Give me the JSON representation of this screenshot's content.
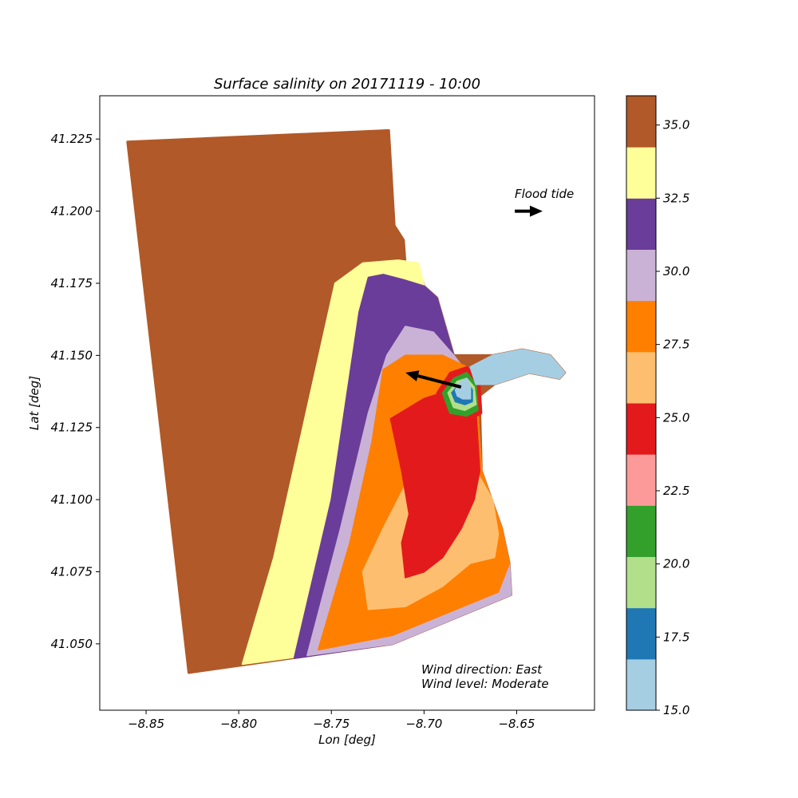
{
  "chart_data": {
    "type": "scatter",
    "title": "Surface salinity on 20171119 - 10:00",
    "xlabel": "Lon [deg]",
    "ylabel": "Lat [deg]",
    "xlim": [
      -8.875,
      -8.608
    ],
    "ylim": [
      41.027,
      41.24
    ],
    "xticks": [
      -8.85,
      -8.8,
      -8.75,
      -8.7,
      -8.65
    ],
    "xtick_labels": [
      "−8.85",
      "−8.80",
      "−8.75",
      "−8.70",
      "−8.65"
    ],
    "yticks": [
      41.05,
      41.075,
      41.1,
      41.125,
      41.15,
      41.175,
      41.2,
      41.225
    ],
    "ytick_labels": [
      "41.050",
      "41.075",
      "41.100",
      "41.125",
      "41.150",
      "41.175",
      "41.200",
      "41.225"
    ],
    "grid": false,
    "domain_outline": [
      [
        -8.86,
        41.224
      ],
      [
        -8.719,
        41.228
      ],
      [
        -8.716,
        41.195
      ],
      [
        -8.711,
        41.19
      ],
      [
        -8.71,
        41.181
      ],
      [
        -8.703,
        41.18
      ],
      [
        -8.7,
        41.174
      ],
      [
        -8.693,
        41.17
      ],
      [
        -8.684,
        41.15
      ],
      [
        -8.675,
        41.15
      ],
      [
        -8.663,
        41.15
      ],
      [
        -8.647,
        41.152
      ],
      [
        -8.632,
        41.15
      ],
      [
        -8.624,
        41.144
      ],
      [
        -8.627,
        41.142
      ],
      [
        -8.643,
        41.144
      ],
      [
        -8.662,
        41.14
      ],
      [
        -8.67,
        41.136
      ],
      [
        -8.669,
        41.11
      ],
      [
        -8.658,
        41.09
      ],
      [
        -8.654,
        41.078
      ],
      [
        -8.653,
        41.067
      ],
      [
        -8.717,
        41.05
      ],
      [
        -8.827,
        41.04
      ]
    ],
    "regions": [
      {
        "salinity": 33.5,
        "polygon": [
          [
            -8.714,
            41.183
          ],
          [
            -8.703,
            41.182
          ],
          [
            -8.7,
            41.174
          ],
          [
            -8.693,
            41.17
          ],
          [
            -8.684,
            41.15
          ],
          [
            -8.672,
            41.14
          ],
          [
            -8.669,
            41.11
          ],
          [
            -8.658,
            41.09
          ],
          [
            -8.654,
            41.078
          ],
          [
            -8.653,
            41.067
          ],
          [
            -8.717,
            41.05
          ],
          [
            -8.798,
            41.043
          ],
          [
            -8.781,
            41.08
          ],
          [
            -8.748,
            41.175
          ],
          [
            -8.733,
            41.182
          ]
        ]
      },
      {
        "salinity": 31.5,
        "polygon": [
          [
            -8.73,
            41.177
          ],
          [
            -8.722,
            41.178
          ],
          [
            -8.71,
            41.176
          ],
          [
            -8.7,
            41.174
          ],
          [
            -8.693,
            41.17
          ],
          [
            -8.684,
            41.15
          ],
          [
            -8.672,
            41.14
          ],
          [
            -8.669,
            41.11
          ],
          [
            -8.658,
            41.09
          ],
          [
            -8.654,
            41.078
          ],
          [
            -8.653,
            41.067
          ],
          [
            -8.717,
            41.05
          ],
          [
            -8.77,
            41.045
          ],
          [
            -8.75,
            41.1
          ],
          [
            -8.735,
            41.165
          ]
        ]
      },
      {
        "salinity": 29.5,
        "polygon": [
          [
            -8.71,
            41.16
          ],
          [
            -8.695,
            41.158
          ],
          [
            -8.684,
            41.15
          ],
          [
            -8.672,
            41.14
          ],
          [
            -8.669,
            41.11
          ],
          [
            -8.658,
            41.09
          ],
          [
            -8.654,
            41.078
          ],
          [
            -8.653,
            41.067
          ],
          [
            -8.717,
            41.05
          ],
          [
            -8.763,
            41.046
          ],
          [
            -8.745,
            41.09
          ],
          [
            -8.73,
            41.13
          ],
          [
            -8.72,
            41.15
          ]
        ]
      },
      {
        "salinity": 28.0,
        "polygon": [
          [
            -8.722,
            41.145
          ],
          [
            -8.71,
            41.15
          ],
          [
            -8.69,
            41.15
          ],
          [
            -8.677,
            41.146
          ],
          [
            -8.672,
            41.14
          ],
          [
            -8.669,
            41.11
          ],
          [
            -8.658,
            41.09
          ],
          [
            -8.654,
            41.078
          ],
          [
            -8.66,
            41.068
          ],
          [
            -8.717,
            41.053
          ],
          [
            -8.757,
            41.048
          ],
          [
            -8.74,
            41.085
          ],
          [
            -8.728,
            41.12
          ]
        ]
      },
      {
        "salinity": 26.5,
        "polygon": [
          [
            -8.7,
            41.12
          ],
          [
            -8.685,
            41.117
          ],
          [
            -8.672,
            41.11
          ],
          [
            -8.663,
            41.1
          ],
          [
            -8.66,
            41.088
          ],
          [
            -8.662,
            41.08
          ],
          [
            -8.675,
            41.078
          ],
          [
            -8.69,
            41.07
          ],
          [
            -8.71,
            41.063
          ],
          [
            -8.73,
            41.062
          ],
          [
            -8.733,
            41.075
          ],
          [
            -8.722,
            41.09
          ],
          [
            -8.71,
            41.105
          ]
        ]
      },
      {
        "salinity": 25.0,
        "polygon": [
          [
            -8.718,
            41.128
          ],
          [
            -8.7,
            41.135
          ],
          [
            -8.685,
            41.138
          ],
          [
            -8.672,
            41.13
          ],
          [
            -8.67,
            41.11
          ],
          [
            -8.673,
            41.1
          ],
          [
            -8.68,
            41.09
          ],
          [
            -8.69,
            41.08
          ],
          [
            -8.7,
            41.075
          ],
          [
            -8.71,
            41.073
          ],
          [
            -8.712,
            41.085
          ],
          [
            -8.708,
            41.095
          ],
          [
            -8.712,
            41.11
          ]
        ]
      },
      {
        "salinity": 24.0,
        "polygon": [
          [
            -8.707,
            41.099
          ],
          [
            -8.7,
            41.102
          ],
          [
            -8.694,
            41.101
          ],
          [
            -8.692,
            41.095
          ],
          [
            -8.699,
            41.093
          ],
          [
            -8.706,
            41.094
          ]
        ]
      },
      {
        "salinity": 24.0,
        "polygon": [
          [
            -8.693,
            41.137
          ],
          [
            -8.686,
            41.144
          ],
          [
            -8.677,
            41.146
          ],
          [
            -8.67,
            41.141
          ],
          [
            -8.669,
            41.13
          ],
          [
            -8.677,
            41.127
          ],
          [
            -8.687,
            41.127
          ]
        ]
      },
      {
        "salinity": 21.5,
        "polygon": [
          [
            -8.69,
            41.137
          ],
          [
            -8.684,
            41.142
          ],
          [
            -8.677,
            41.144
          ],
          [
            -8.672,
            41.14
          ],
          [
            -8.671,
            41.131
          ],
          [
            -8.677,
            41.129
          ],
          [
            -8.686,
            41.13
          ]
        ]
      },
      {
        "salinity": 19.0,
        "polygon": [
          [
            -8.687,
            41.137
          ],
          [
            -8.682,
            41.141
          ],
          [
            -8.677,
            41.142
          ],
          [
            -8.673,
            41.139
          ],
          [
            -8.672,
            41.133
          ],
          [
            -8.678,
            41.131
          ],
          [
            -8.684,
            41.132
          ]
        ]
      },
      {
        "salinity": 17.0,
        "polygon": [
          [
            -8.685,
            41.137
          ],
          [
            -8.681,
            41.14
          ],
          [
            -8.677,
            41.141
          ],
          [
            -8.674,
            41.138
          ],
          [
            -8.674,
            41.134
          ],
          [
            -8.678,
            41.133
          ],
          [
            -8.683,
            41.134
          ]
        ]
      },
      {
        "salinity": 15.5,
        "polygon": [
          [
            -8.683,
            41.138
          ],
          [
            -8.68,
            41.141
          ],
          [
            -8.677,
            41.142
          ],
          [
            -8.675,
            41.139
          ],
          [
            -8.675,
            41.135
          ],
          [
            -8.679,
            41.135
          ],
          [
            -8.682,
            41.136
          ]
        ]
      },
      {
        "salinity": 15.5,
        "polygon": [
          [
            -8.675,
            41.146
          ],
          [
            -8.663,
            41.15
          ],
          [
            -8.647,
            41.152
          ],
          [
            -8.632,
            41.15
          ],
          [
            -8.624,
            41.144
          ],
          [
            -8.627,
            41.142
          ],
          [
            -8.643,
            41.144
          ],
          [
            -8.662,
            41.14
          ],
          [
            -8.672,
            41.14
          ]
        ]
      }
    ],
    "colorbar": {
      "min": 15.0,
      "max": 36.0,
      "colors": [
        "#a6cee3",
        "#1f78b4",
        "#b2df8a",
        "#33a02c",
        "#fb9a99",
        "#e31a1c",
        "#fdbf6f",
        "#ff7f00",
        "#cab2d6",
        "#6a3d9a",
        "#ffff99",
        "#b15928"
      ],
      "ticks": [
        15.0,
        17.5,
        20.0,
        22.5,
        25.0,
        27.5,
        30.0,
        32.5,
        35.0
      ],
      "tick_labels": [
        "15.0",
        "17.5",
        "20.0",
        "22.5",
        "25.0",
        "27.5",
        "30.0",
        "32.5",
        "35.0"
      ]
    },
    "arrows": [
      {
        "name": "surface-current-arrow",
        "from": [
          -8.68,
          41.139
        ],
        "to": [
          -8.71,
          41.144
        ]
      },
      {
        "name": "flood-tide-arrow",
        "from": [
          -8.651,
          41.2
        ],
        "to": [
          -8.636,
          41.2
        ]
      }
    ],
    "annotations": {
      "tide": "Flood tide",
      "wind_direction": "Wind direction: East",
      "wind_level": "Wind level: Moderate"
    }
  }
}
